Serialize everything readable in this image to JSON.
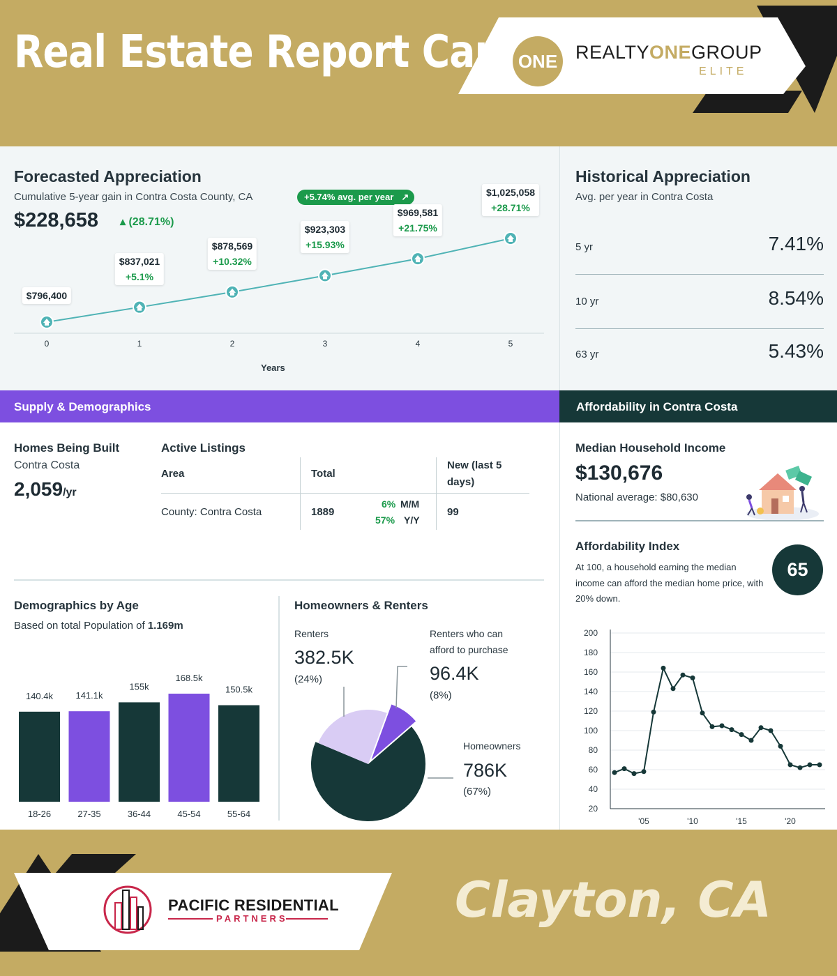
{
  "header": {
    "title": "Real Estate Report Card",
    "logo": {
      "mark": "ONE",
      "name_part1": "REALTY",
      "name_part2": "ONE",
      "name_part3": "GROUP",
      "subline": "ELITE"
    }
  },
  "forecast": {
    "title": "Forecasted Appreciation",
    "subtitle": "Cumulative 5-year gain in Contra Costa County, CA",
    "avg_pill": "+5.74% avg. per year",
    "trend_icon": "trend-up-icon",
    "value": "$228,658",
    "change": "▴ (28.71%)",
    "x_label": "Years",
    "points": [
      {
        "year": "0",
        "value": "$796,400",
        "change": ""
      },
      {
        "year": "1",
        "value": "$837,021",
        "change": "+5.1%"
      },
      {
        "year": "2",
        "value": "$878,569",
        "change": "+10.32%"
      },
      {
        "year": "3",
        "value": "$923,303",
        "change": "+15.93%"
      },
      {
        "year": "4",
        "value": "$969,581",
        "change": "+21.75%"
      },
      {
        "year": "5",
        "value": "$1,025,058",
        "change": "+28.71%"
      }
    ]
  },
  "chart_data": [
    {
      "type": "line",
      "title": "Forecasted Appreciation",
      "xlabel": "Years",
      "ylabel": "",
      "x": [
        0,
        1,
        2,
        3,
        4,
        5
      ],
      "values": [
        796400,
        837021,
        878569,
        923303,
        969581,
        1025058
      ]
    },
    {
      "type": "bar",
      "title": "Demographics by Age",
      "categories": [
        "18-26",
        "27-35",
        "36-44",
        "45-54",
        "55-64"
      ],
      "values": [
        140.4,
        141.1,
        155,
        168.5,
        150.5
      ],
      "labels": [
        "140.4k",
        "141.1k",
        "155k",
        "168.5k",
        "150.5k"
      ],
      "colors": [
        "#163838",
        "#7d4fe0",
        "#163838",
        "#7d4fe0",
        "#163838"
      ],
      "ylim": [
        0,
        180
      ]
    },
    {
      "type": "pie",
      "title": "Homeowners & Renters",
      "slices": [
        {
          "name": "Homeowners",
          "value": 67,
          "color": "#163838"
        },
        {
          "name": "Renters",
          "value": 24,
          "color": "#d9ccf4"
        },
        {
          "name": "Renters who can afford to purchase",
          "value": 8,
          "color": "#7d4fe0"
        }
      ]
    },
    {
      "type": "line",
      "title": "Affordability Index",
      "ylim": [
        20,
        200
      ],
      "yticks": [
        200,
        180,
        160,
        140,
        120,
        100,
        80,
        60,
        40,
        20
      ],
      "xticks": [
        {
          "x": 2005,
          "label": "'05"
        },
        {
          "x": 2010,
          "label": "'10"
        },
        {
          "x": 2015,
          "label": "'15"
        },
        {
          "x": 2020,
          "label": "'20"
        }
      ],
      "xlim": [
        2002,
        2023
      ],
      "x": [
        2002,
        2003,
        2004,
        2005,
        2006,
        2007,
        2008,
        2009,
        2010,
        2011,
        2012,
        2013,
        2014,
        2015,
        2016,
        2017,
        2018,
        2019,
        2020,
        2021,
        2022,
        2023
      ],
      "values": [
        57,
        61,
        56,
        58,
        119,
        164,
        143,
        157,
        154,
        118,
        104,
        105,
        101,
        96,
        90,
        103,
        100,
        84,
        65,
        62,
        65,
        65
      ]
    }
  ],
  "historical": {
    "title": "Historical Appreciation",
    "subtitle": "Avg. per year in Contra Costa",
    "rows": [
      {
        "period": "5 yr",
        "pct": "7.41%"
      },
      {
        "period": "10 yr",
        "pct": "8.54%"
      },
      {
        "period": "63 yr",
        "pct": "5.43%"
      }
    ]
  },
  "supply": {
    "bar_title": "Supply & Demographics",
    "homes_built": {
      "title": "Homes Being Built",
      "area": "Contra Costa",
      "value": "2,059",
      "unit": "/yr"
    },
    "listings": {
      "title": "Active Listings",
      "headers": {
        "area": "Area",
        "total": "Total",
        "new_line1": "New (last 5",
        "new_line2": "days)"
      },
      "row": {
        "area": "County: Contra Costa",
        "total": "1889",
        "mm_pct": "6%",
        "mm_lbl": "M/M",
        "yy_pct": "57%",
        "yy_lbl": "Y/Y",
        "new": "99"
      }
    },
    "demographics": {
      "title": "Demographics by Age",
      "sub_prefix": "Based on total Population of ",
      "population": "1.169m"
    },
    "owners": {
      "title": "Homeowners & Renters",
      "renters_label": "Renters",
      "renters_value": "382.5K",
      "renters_pct": "(24%)",
      "afford_label_1": "Renters who can",
      "afford_label_2": "afford to purchase",
      "afford_value": "96.4K",
      "afford_pct": "(8%)",
      "owners_label": "Homeowners",
      "owners_value": "786K",
      "owners_pct": "(67%)"
    }
  },
  "affordability": {
    "bar_title": "Affordability in Contra Costa",
    "income_title": "Median Household Income",
    "income_value": "$130,676",
    "national": "National average: $80,630",
    "index_title": "Affordability Index",
    "index_desc": "At 100, a household earning the median income can afford the median home price, with 20% down.",
    "index_value": "65"
  },
  "footer": {
    "brand_name": "PACIFIC RESIDENTIAL",
    "brand_sub": "PARTNERS",
    "city": "Clayton, CA"
  },
  "colors": {
    "gold": "#c4ab63",
    "purple": "#7d4fe0",
    "dark_teal": "#163838",
    "teal_line": "#4fb3b5",
    "green": "#1b9a4b"
  }
}
